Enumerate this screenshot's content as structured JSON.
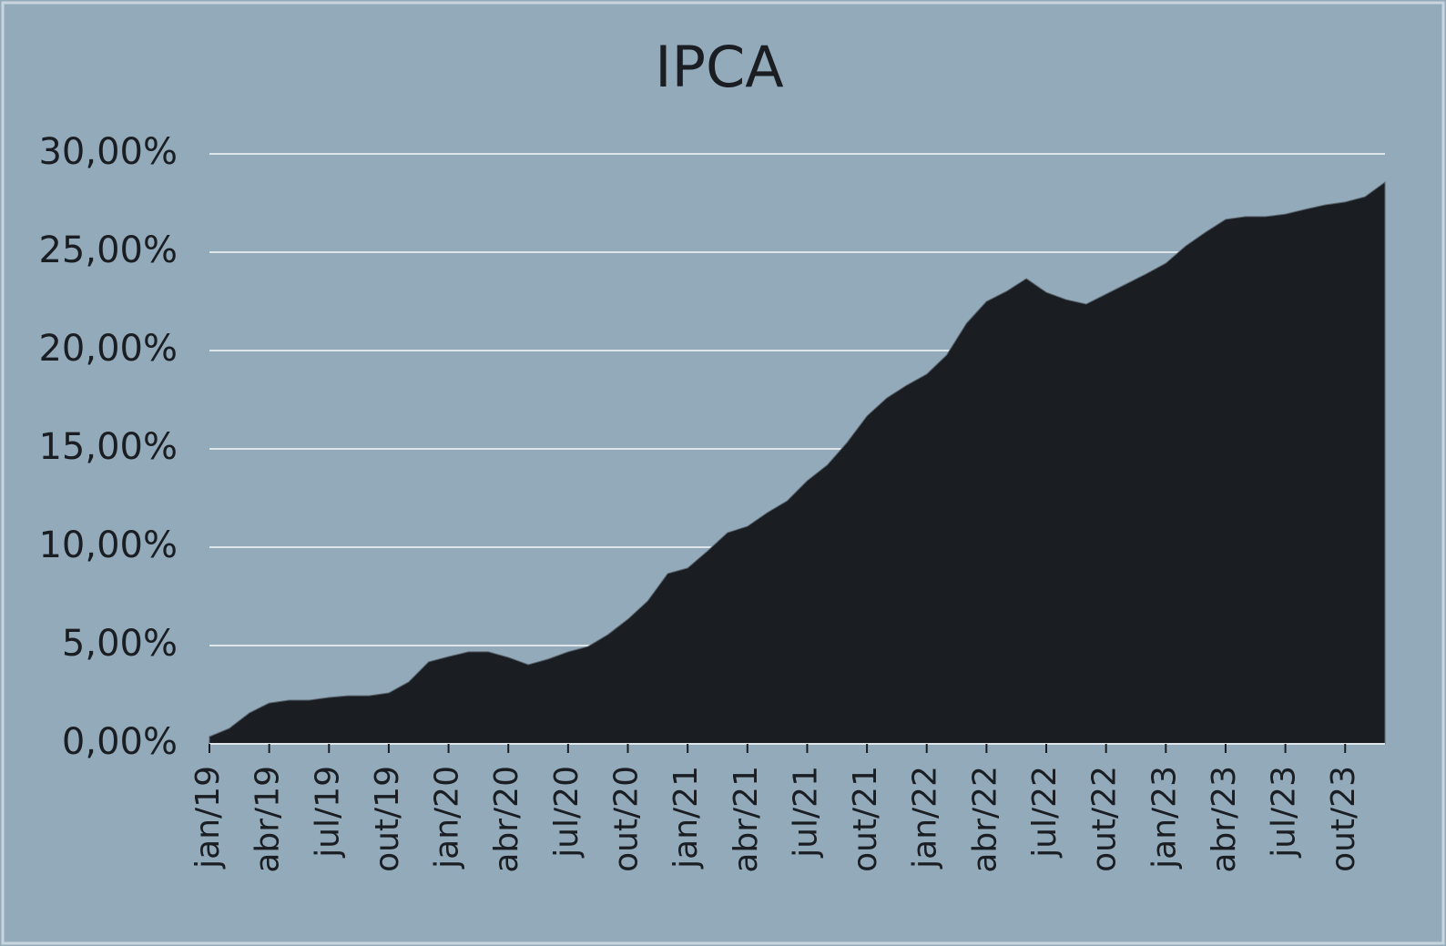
{
  "chart_data": {
    "type": "area",
    "title": "IPCA",
    "categories": [
      "jan/19",
      null,
      null,
      "abr/19",
      null,
      null,
      "jul/19",
      null,
      null,
      "out/19",
      null,
      null,
      "jan/20",
      null,
      null,
      "abr/20",
      null,
      null,
      "jul/20",
      null,
      null,
      "out/20",
      null,
      null,
      "jan/21",
      null,
      null,
      "abr/21",
      null,
      null,
      "jul/21",
      null,
      null,
      "out/21",
      null,
      null,
      "jan/22",
      null,
      null,
      "abr/22",
      null,
      null,
      "jul/22",
      null,
      null,
      "out/22",
      null,
      null,
      "jan/23",
      null,
      null,
      "abr/23",
      null,
      null,
      "jul/23",
      null,
      null,
      "out/23",
      null,
      null
    ],
    "values": [
      0.37,
      0.79,
      1.57,
      2.08,
      2.22,
      2.22,
      2.36,
      2.45,
      2.45,
      2.59,
      3.15,
      4.17,
      4.44,
      4.68,
      4.68,
      4.4,
      4.03,
      4.31,
      4.68,
      4.95,
      5.56,
      6.34,
      7.27,
      8.66,
      8.94,
      9.81,
      10.74,
      11.06,
      11.76,
      12.36,
      13.38,
      14.17,
      15.32,
      16.67,
      17.59,
      18.24,
      18.8,
      19.77,
      21.39,
      22.5,
      23.01,
      23.66,
      22.96,
      22.59,
      22.36,
      22.87,
      23.38,
      23.89,
      24.44,
      25.32,
      26.02,
      26.67,
      26.81,
      26.81,
      26.94,
      27.18,
      27.41,
      27.55,
      27.82,
      28.56
    ],
    "color": "#1a1e22",
    "ylim": [
      0,
      30
    ],
    "yticks": [
      {
        "value": 0,
        "label": "0,00%"
      },
      {
        "value": 5,
        "label": "5,00%"
      },
      {
        "value": 10,
        "label": "10,00%"
      },
      {
        "value": 15,
        "label": "15,00%"
      },
      {
        "value": 20,
        "label": "20,00%"
      },
      {
        "value": 25,
        "label": "25,00%"
      },
      {
        "value": 30,
        "label": "30,00%"
      }
    ],
    "grid": true
  }
}
